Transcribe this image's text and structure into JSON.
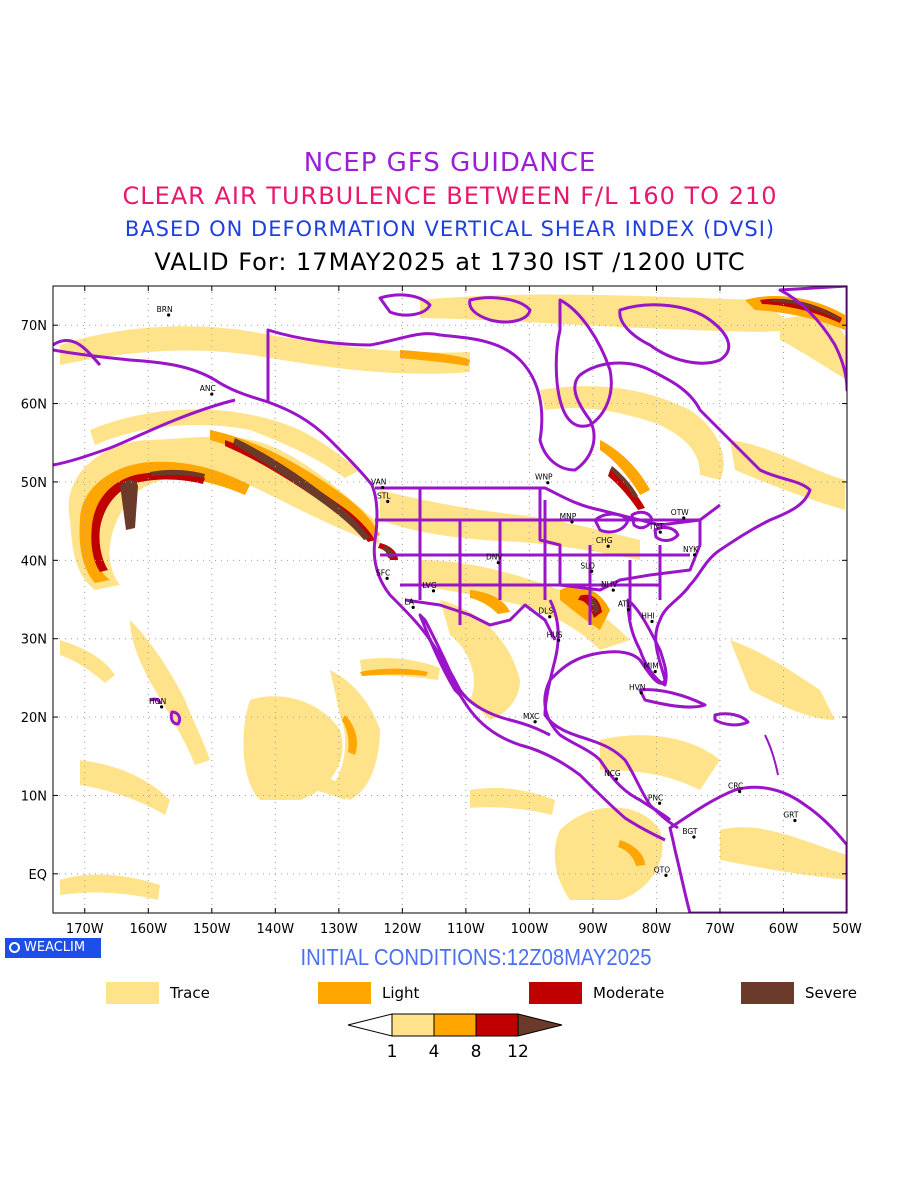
{
  "titles": {
    "line1": "NCEP GFS GUIDANCE",
    "line2": "CLEAR AIR TURBULENCE BETWEEN F/L 160 TO 210",
    "line3": "BASED ON DEFORMATION VERTICAL SHEAR INDEX (DVSI)",
    "line4": "VALID For: 17MAY2025 at 1730 IST /1200 UTC"
  },
  "map": {
    "lon_range": [
      -175,
      -50
    ],
    "lat_range": [
      -5,
      75
    ],
    "lat_labels": [
      "70N",
      "60N",
      "50N",
      "40N",
      "30N",
      "20N",
      "10N",
      "EQ"
    ],
    "lon_labels": [
      "170W",
      "160W",
      "150W",
      "140W",
      "130W",
      "120W",
      "110W",
      "100W",
      "90W",
      "80W",
      "70W",
      "60W",
      "50W"
    ],
    "gridlines": "dotted",
    "colors": {
      "border": "#9a14c8",
      "trace": "#ffe38a",
      "light": "#ffa600",
      "moderate": "#c00000",
      "severe": "#6b3a2a"
    },
    "stations": [
      {
        "code": "ANC",
        "lon": -150.0,
        "lat": 61.2
      },
      {
        "code": "BRN",
        "lon": -156.8,
        "lat": 71.3
      },
      {
        "code": "VAN",
        "lon": -123.1,
        "lat": 49.3
      },
      {
        "code": "STL",
        "lon": -122.3,
        "lat": 47.5
      },
      {
        "code": "SFC",
        "lon": -122.4,
        "lat": 37.7
      },
      {
        "code": "LA",
        "lon": -118.3,
        "lat": 34.0
      },
      {
        "code": "LVG",
        "lon": -115.1,
        "lat": 36.1
      },
      {
        "code": "DNV",
        "lon": -104.9,
        "lat": 39.7
      },
      {
        "code": "WNP",
        "lon": -97.1,
        "lat": 49.9
      },
      {
        "code": "MNP",
        "lon": -93.3,
        "lat": 44.9
      },
      {
        "code": "CHG",
        "lon": -87.6,
        "lat": 41.8
      },
      {
        "code": "SLO",
        "lon": -90.2,
        "lat": 38.6
      },
      {
        "code": "OTW",
        "lon": -75.7,
        "lat": 45.4
      },
      {
        "code": "TNT",
        "lon": -79.4,
        "lat": 43.6
      },
      {
        "code": "NYK",
        "lon": -74.0,
        "lat": 40.7
      },
      {
        "code": "NHV",
        "lon": -86.8,
        "lat": 36.2
      },
      {
        "code": "ATL",
        "lon": -84.4,
        "lat": 33.7
      },
      {
        "code": "HHI",
        "lon": -80.7,
        "lat": 32.2
      },
      {
        "code": "DLS",
        "lon": -96.8,
        "lat": 32.8
      },
      {
        "code": "HUS",
        "lon": -95.4,
        "lat": 29.8
      },
      {
        "code": "MIM",
        "lon": -80.2,
        "lat": 25.8
      },
      {
        "code": "HVN",
        "lon": -82.4,
        "lat": 23.1
      },
      {
        "code": "HON",
        "lon": -157.9,
        "lat": 21.3
      },
      {
        "code": "MXC",
        "lon": -99.1,
        "lat": 19.4
      },
      {
        "code": "NCG",
        "lon": -86.3,
        "lat": 12.1
      },
      {
        "code": "PNC",
        "lon": -79.5,
        "lat": 9.0
      },
      {
        "code": "CRC",
        "lon": -66.9,
        "lat": 10.5
      },
      {
        "code": "BGT",
        "lon": -74.1,
        "lat": 4.7
      },
      {
        "code": "GRT",
        "lon": -58.2,
        "lat": 6.8
      },
      {
        "code": "QTO",
        "lon": -78.5,
        "lat": -0.2
      }
    ]
  },
  "brand": "WEACLIM",
  "initial_conditions": "INITIAL CONDITIONS:12Z08MAY2025",
  "legend": [
    {
      "label": "Trace",
      "color": "#ffe38a"
    },
    {
      "label": "Light",
      "color": "#ffa600"
    },
    {
      "label": "Moderate",
      "color": "#c00000"
    },
    {
      "label": "Severe",
      "color": "#6b3a2a"
    }
  ],
  "colorbar": {
    "ticks": [
      "1",
      "4",
      "8",
      "12"
    ],
    "colors": [
      "#ffffff",
      "#ffe38a",
      "#ffa600",
      "#c00000",
      "#6b3a2a"
    ]
  }
}
